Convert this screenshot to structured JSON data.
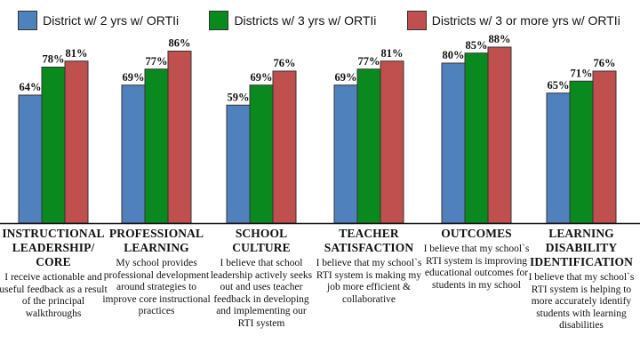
{
  "chart_data": {
    "type": "bar",
    "series": [
      {
        "name": "District w/ 2 yrs w/ ORTIi",
        "color": "#4f81bd",
        "values": [
          64,
          69,
          59,
          69,
          80,
          65
        ]
      },
      {
        "name": "Districts w/ 3 yrs w/ ORTIi",
        "color": "#0a8a1e",
        "values": [
          78,
          77,
          69,
          77,
          85,
          71
        ]
      },
      {
        "name": "Districts w/ 3 or more yrs w/ ORTIi",
        "color": "#c0504d",
        "values": [
          81,
          86,
          76,
          81,
          88,
          76
        ]
      }
    ],
    "value_suffix": "%",
    "ylim": [
      0,
      100
    ],
    "legend_position": "top",
    "grid": false,
    "categories": [
      {
        "title": "INSTRUCTIONAL LEADERSHIP/ CORE",
        "description": "I receive actionable and useful feedback as a result of the principal walkthroughs"
      },
      {
        "title": "PROFESSIONAL LEARNING",
        "description": "My school provides professional development around strategies to improve core instructional practices"
      },
      {
        "title": "SCHOOL CULTURE",
        "description": "I believe that school leadership actively seeks out and uses teacher feedback in developing and implementing our RTI system"
      },
      {
        "title": "TEACHER SATISFACTION",
        "description": "I believe that my school`s RTI system is making my job more efficient & collaborative"
      },
      {
        "title": "OUTCOMES",
        "description": "I believe that my school`s RTI system is improving educational outcomes for students in my school"
      },
      {
        "title": "LEARNING DISABILITY IDENTIFICATION",
        "description": "I believe that my school`s RTI system is helping to more accurately identify students with learning disabilities"
      }
    ]
  }
}
